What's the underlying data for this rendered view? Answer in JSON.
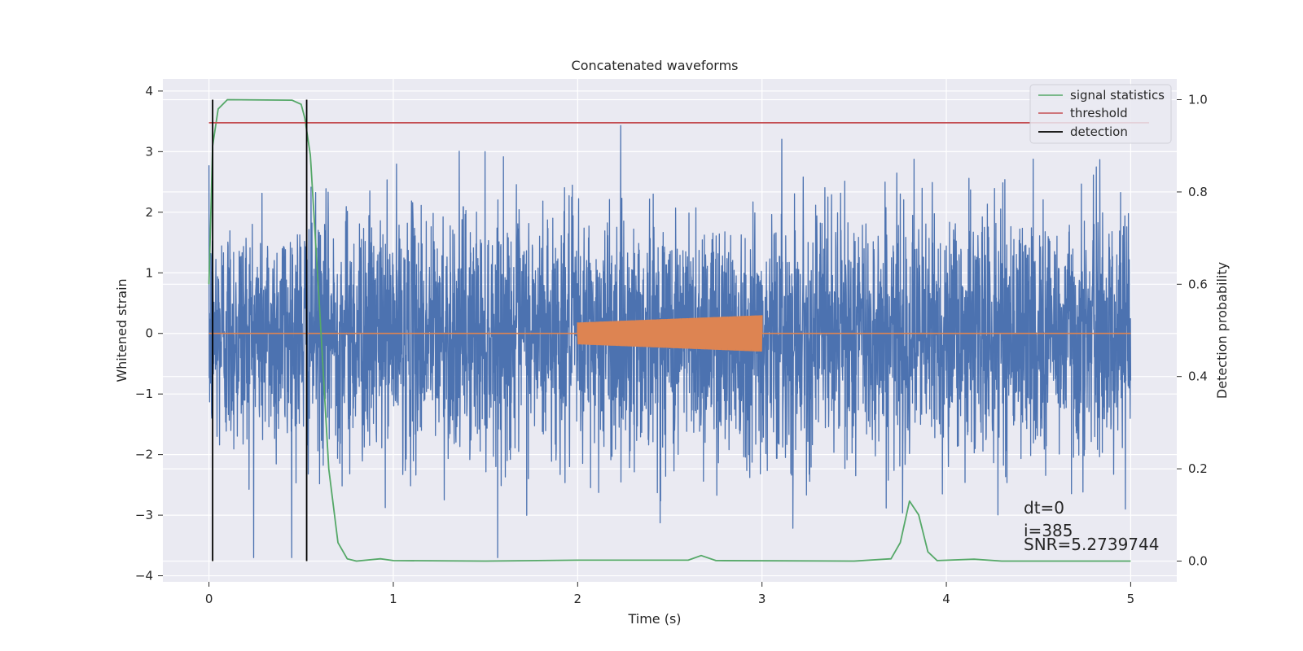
{
  "chart_data": {
    "type": "line",
    "title": "Concatenated waveforms",
    "xlabel": "Time (s)",
    "ylabel": "Whitened strain",
    "y2label": "Detection probability",
    "xlim": [
      -0.25,
      5.25
    ],
    "ylim": [
      -4.1,
      4.2
    ],
    "y2lim": [
      -0.045,
      1.045
    ],
    "xticks": [
      0,
      1,
      2,
      3,
      4,
      5
    ],
    "yticks": [
      -4,
      -3,
      -2,
      -1,
      0,
      1,
      2,
      3,
      4
    ],
    "y2ticks": [
      0.0,
      0.2,
      0.4,
      0.6,
      0.8,
      1.0
    ],
    "xtick_labels": [
      "0",
      "1",
      "2",
      "3",
      "4",
      "5"
    ],
    "ytick_labels": [
      "−4",
      "−3",
      "−2",
      "−1",
      "0",
      "1",
      "2",
      "3",
      "4"
    ],
    "y2tick_labels": [
      "0.0",
      "0.2",
      "0.4",
      "0.6",
      "0.8",
      "1.0"
    ],
    "grid": true,
    "legend_placement": "top-right",
    "legend": [
      {
        "label": "signal statistics",
        "color": "#55a868"
      },
      {
        "label": "threshold",
        "color": "#c44e52"
      },
      {
        "label": "detection",
        "color": "#000000"
      }
    ],
    "series": [
      {
        "type": "noise",
        "axis": "left",
        "color": "#4c72b0",
        "x_range": [
          0,
          5
        ],
        "typical_amplitude": 1.0,
        "peak_range": [
          -3.7,
          3.75
        ]
      },
      {
        "type": "chirp",
        "axis": "left",
        "color": "#dd8452",
        "x_range": [
          0,
          5
        ],
        "active_range": [
          2.0,
          3.0
        ],
        "amplitude_start": 0.18,
        "amplitude_end": 0.3
      },
      {
        "name": "signal statistics",
        "axis": "right",
        "color": "#55a868",
        "points": [
          [
            0.0,
            0.6
          ],
          [
            0.02,
            0.9
          ],
          [
            0.05,
            0.98
          ],
          [
            0.1,
            1.0
          ],
          [
            0.45,
            0.999
          ],
          [
            0.5,
            0.99
          ],
          [
            0.52,
            0.96
          ],
          [
            0.55,
            0.88
          ],
          [
            0.6,
            0.55
          ],
          [
            0.65,
            0.2
          ],
          [
            0.7,
            0.04
          ],
          [
            0.75,
            0.005
          ],
          [
            0.8,
            0.0
          ],
          [
            0.93,
            0.005
          ],
          [
            1.0,
            0.001
          ],
          [
            1.5,
            0.0
          ],
          [
            2.0,
            0.002
          ],
          [
            2.6,
            0.002
          ],
          [
            2.67,
            0.012
          ],
          [
            2.75,
            0.001
          ],
          [
            3.5,
            0.0
          ],
          [
            3.7,
            0.005
          ],
          [
            3.75,
            0.04
          ],
          [
            3.8,
            0.13
          ],
          [
            3.85,
            0.1
          ],
          [
            3.9,
            0.02
          ],
          [
            3.95,
            0.001
          ],
          [
            4.15,
            0.004
          ],
          [
            4.3,
            0.0
          ],
          [
            5.0,
            0.0
          ]
        ]
      },
      {
        "name": "threshold",
        "axis": "right",
        "color": "#c44e52",
        "points": [
          [
            0.0,
            0.95
          ],
          [
            5.1,
            0.95
          ]
        ]
      },
      {
        "name": "detection",
        "axis": "right",
        "color": "#000000",
        "type": "vlines",
        "x": [
          0.02,
          0.53
        ],
        "y_range": [
          0.0,
          1.0
        ]
      }
    ],
    "annotations": [
      "dt=0",
      "i=385",
      "SNR=5.2739744"
    ]
  }
}
